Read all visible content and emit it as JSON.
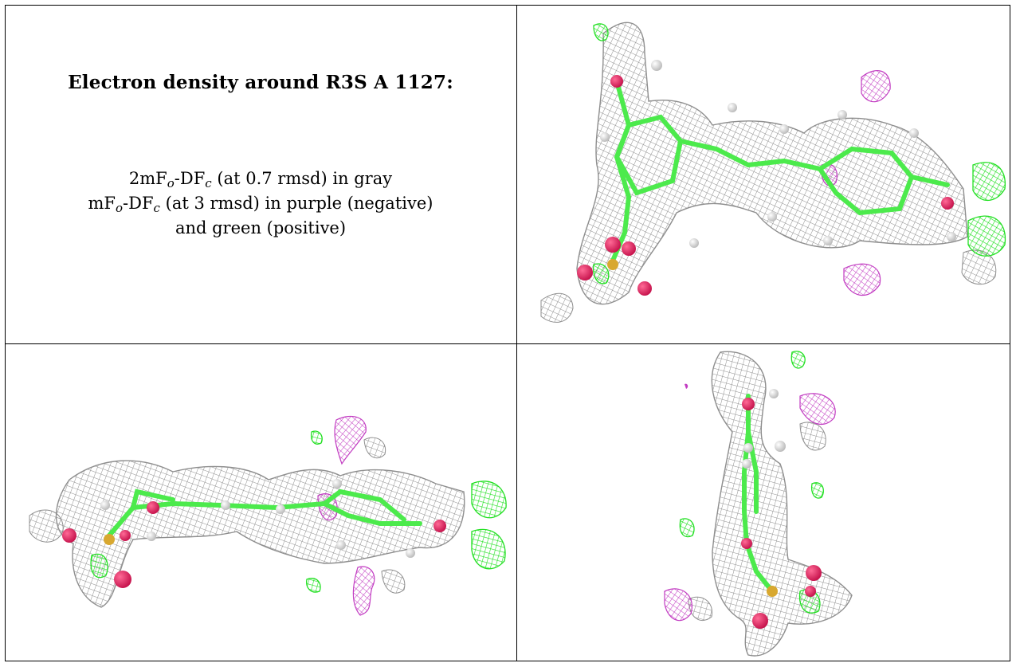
{
  "caption": {
    "title": "Electron density around R3S A 1127:",
    "line1": {
      "pre": "2mF",
      "sub1": "o",
      "mid": "-DF",
      "sub2": "c",
      "post": " (at 0.7 rmsd) in gray"
    },
    "line2": {
      "pre": "mF",
      "sub1": "o",
      "mid": "-DF",
      "sub2": "c",
      "post": " (at 3 rmsd) in purple (negative)"
    },
    "line3": "and green (positive)"
  },
  "colors": {
    "density_2fofc": "#8e8e8e",
    "diff_positive": "#22e022",
    "diff_negative": "#c23cc2",
    "carbon": "#4cea4c",
    "oxygen": "#e0205a",
    "sulfur": "#d8a830",
    "hydrogen": "#e6e6e6",
    "grid_lines": "#000000"
  },
  "panels": [
    {
      "id": "top-right",
      "view": "face-on"
    },
    {
      "id": "bottom-left",
      "view": "edge-on"
    },
    {
      "id": "bottom-right",
      "view": "end-on"
    }
  ]
}
